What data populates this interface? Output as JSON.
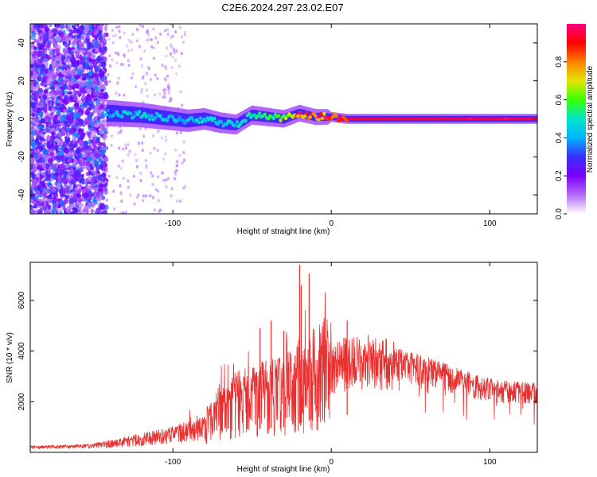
{
  "title": "C2E6.2024.297.23.02.E07",
  "chart_data": [
    {
      "type": "heatmap",
      "title": "C2E6.2024.297.23.02.E07",
      "xlabel": "Height of straight line (km)",
      "ylabel": "Frequency (Hz)",
      "xlim": [
        -190,
        130
      ],
      "ylim": [
        -50,
        50
      ],
      "x_ticks": [
        -100,
        0,
        100
      ],
      "x_tick_labels": [
        "-100",
        "0",
        "100"
      ],
      "y_ticks": [
        -40,
        -20,
        0,
        20,
        40
      ],
      "y_tick_labels": [
        "-40",
        "-20",
        "0",
        "20",
        "40"
      ],
      "colorbar": {
        "label": "Normalized spectral amplitude",
        "range": [
          0,
          1
        ],
        "ticks": [
          0.0,
          0.2,
          0.4,
          0.6,
          0.8
        ],
        "tick_labels": [
          "0.0",
          "0.2",
          "0.4",
          "0.6",
          "0.8"
        ],
        "colormap": [
          "#ffffff",
          "#b36bff",
          "#7a00ff",
          "#3c2dff",
          "#00b4ff",
          "#00e6c8",
          "#36ff00",
          "#e6e600",
          "#ff8000",
          "#ff0000",
          "#ff0080"
        ]
      },
      "ridge": {
        "x": [
          -140,
          -120,
          -100,
          -90,
          -80,
          -70,
          -60,
          -50,
          -40,
          -30,
          -20,
          -10,
          0,
          10,
          20,
          40,
          60,
          80,
          100,
          120,
          130
        ],
        "frequency": [
          3,
          2,
          0,
          -1,
          0,
          -2,
          -3,
          2,
          1,
          0,
          3,
          1,
          1,
          0,
          0,
          0,
          0,
          0,
          0,
          0,
          0
        ],
        "amplitude": [
          0.45,
          0.5,
          0.45,
          0.45,
          0.5,
          0.5,
          0.5,
          0.55,
          0.6,
          0.65,
          0.85,
          0.85,
          0.9,
          0.95,
          0.95,
          0.95,
          0.95,
          0.95,
          0.95,
          0.95,
          0.95
        ]
      },
      "grid": false
    },
    {
      "type": "line",
      "xlabel": "Height of straight line (km)",
      "ylabel": "SNR (10 * v/v)",
      "xlim": [
        -190,
        130
      ],
      "ylim": [
        0,
        7500
      ],
      "x_ticks": [
        -100,
        0,
        100
      ],
      "x_tick_labels": [
        "-100",
        "0",
        "100"
      ],
      "y_ticks": [
        2000,
        4000,
        6000
      ],
      "y_tick_labels": [
        "2000",
        "4000",
        "6000"
      ],
      "color": "#e83030",
      "series": [
        {
          "x": [
            -190,
            -180,
            -170,
            -160,
            -150,
            -140,
            -130,
            -120,
            -110,
            -100,
            -90,
            -80,
            -75,
            -70,
            -60,
            -50,
            -40,
            -30,
            -25,
            -20,
            -15,
            -10,
            -5,
            0,
            5,
            10,
            20,
            30,
            40,
            50,
            60,
            70,
            80,
            90,
            100,
            110,
            120,
            130
          ],
          "values": [
            200,
            220,
            230,
            250,
            280,
            350,
            450,
            550,
            650,
            750,
            900,
            1050,
            1500,
            1900,
            2100,
            2300,
            2400,
            2500,
            2700,
            2900,
            3100,
            3300,
            3400,
            3500,
            3600,
            3700,
            3750,
            3700,
            3600,
            3450,
            3300,
            3100,
            2900,
            2700,
            2550,
            2450,
            2400,
            2400
          ]
        }
      ],
      "peaks": {
        "x": [
          -45,
          -38,
          -30,
          -20,
          -19,
          -14,
          10
        ],
        "values": [
          4900,
          5200,
          4800,
          7400,
          6600,
          7050,
          5200
        ]
      },
      "grid": false
    }
  ]
}
